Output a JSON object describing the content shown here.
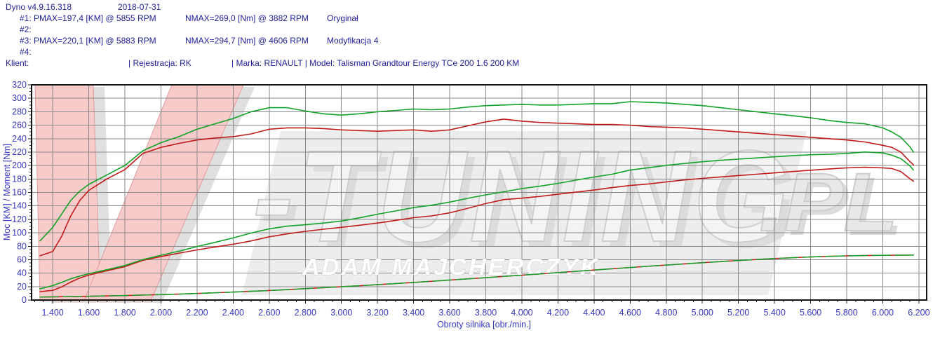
{
  "header": {
    "app": "Dyno v4.9.16.318",
    "date": "2018-07-31",
    "runs": [
      {
        "main": "#1: PMAX=197,4 [KM] @ 5855 RPM",
        "nmax": "NMAX=269,0 [Nm] @ 3882 RPM",
        "label": "Oryginał"
      },
      {
        "main": "#2:",
        "nmax": "",
        "label": ""
      },
      {
        "main": "#3: PMAX=220,1 [KM] @ 5883 RPM",
        "nmax": "NMAX=294,7 [Nm] @ 4606 RPM",
        "label": "Modyfikacja 4"
      },
      {
        "main": "#4:",
        "nmax": "",
        "label": ""
      }
    ],
    "client_line": {
      "klient": "Klient:",
      "rejestracja": "| Rejestracja: RK",
      "marka_model": "| Marka: RENAULT | Model: Talisman Grandtour Energy TCe 200 1.6 200 KM"
    }
  },
  "watermark": {
    "v": "V",
    "tuning": "-TUNING",
    "pl": ".PL",
    "author": "ADAM MAJCHERCZYK"
  },
  "colors": {
    "header_text": "#22229b",
    "tick_text": "#3838c0",
    "grid": "#8a8a8a",
    "border": "#141414",
    "curve_green": "#12a226",
    "curve_red": "#c01a1a",
    "watermark_pink": "#f8cbcb",
    "watermark_pink_edge": "#e09c9c",
    "watermark_gray": "#ededed"
  },
  "chart_data": {
    "type": "line",
    "title": "",
    "xlabel": "Obroty silnika [obr./min.]",
    "ylabel": "Moc [KM] / Moment [Nm]",
    "xlim": [
      1283,
      6243
    ],
    "ylim": [
      0,
      320
    ],
    "grid": true,
    "legend_position": "none",
    "x_ticks": {
      "values": [
        1400,
        1600,
        1800,
        2000,
        2200,
        2400,
        2600,
        2800,
        3000,
        3200,
        3400,
        3600,
        3800,
        4000,
        4200,
        4400,
        4600,
        4800,
        5000,
        5200,
        5400,
        5600,
        5800,
        6000,
        6200
      ],
      "labels": [
        "1.400",
        "1.600",
        "1.800",
        "2.000",
        "2.200",
        "2.400",
        "2.600",
        "2.800",
        "3.000",
        "3.200",
        "3.400",
        "3.600",
        "3.800",
        "4.000",
        "4.200",
        "4.400",
        "4.600",
        "4.800",
        "5.000",
        "5.200",
        "5.400",
        "5.600",
        "5.800",
        "6.000",
        "6.200"
      ],
      "minor_step": 50
    },
    "y_ticks": {
      "values": [
        0,
        20,
        40,
        60,
        80,
        100,
        120,
        140,
        160,
        180,
        200,
        220,
        240,
        260,
        280,
        300,
        320
      ],
      "labels": [
        "0",
        "20",
        "40",
        "60",
        "80",
        "100",
        "120",
        "140",
        "160",
        "180",
        "200",
        "220",
        "240",
        "260",
        "280",
        "300",
        "320"
      ],
      "minor_step": 5
    },
    "x": [
      1330,
      1400,
      1450,
      1500,
      1550,
      1600,
      1700,
      1800,
      1900,
      2000,
      2100,
      2200,
      2300,
      2400,
      2500,
      2600,
      2700,
      2800,
      2900,
      3000,
      3100,
      3200,
      3300,
      3400,
      3500,
      3600,
      3700,
      3800,
      3900,
      4000,
      4100,
      4200,
      4300,
      4400,
      4500,
      4600,
      4700,
      4800,
      4900,
      5000,
      5100,
      5200,
      5300,
      5400,
      5500,
      5600,
      5700,
      5800,
      5900,
      6000,
      6050,
      6100,
      6150,
      6170
    ],
    "series": [
      {
        "name": "strata-oryginal",
        "run": "#1 Oryginał (straty)",
        "unit": "KM",
        "color": "#c01a1a",
        "width": 1.5,
        "values": [
          4.5,
          4.7,
          4.9,
          5.1,
          5.3,
          5.6,
          6.1,
          6.7,
          7.4,
          8.1,
          8.9,
          9.8,
          10.8,
          11.9,
          13.0,
          14.2,
          15.5,
          16.9,
          18.3,
          19.8,
          21.3,
          22.9,
          24.5,
          26.2,
          27.9,
          29.7,
          31.5,
          33.3,
          35.2,
          37.0,
          38.9,
          40.8,
          42.7,
          44.6,
          46.5,
          48.4,
          50.2,
          52.0,
          53.8,
          55.5,
          57.2,
          58.8,
          60.3,
          61.7,
          63.0,
          64.1,
          65.0,
          65.7,
          66.2,
          66.5,
          66.6,
          66.7,
          66.8,
          66.8
        ]
      },
      {
        "name": "strata-modyfikacja",
        "run": "#3 Modyfikacja 4 (straty)",
        "unit": "KM",
        "color": "#12a226",
        "width": 1.5,
        "dash": "26 7",
        "values": [
          4.5,
          4.7,
          4.9,
          5.1,
          5.3,
          5.6,
          6.1,
          6.7,
          7.4,
          8.1,
          8.9,
          9.8,
          10.8,
          11.9,
          13.0,
          14.2,
          15.5,
          16.9,
          18.3,
          19.8,
          21.3,
          22.9,
          24.5,
          26.2,
          27.9,
          29.7,
          31.5,
          33.3,
          35.2,
          37.0,
          38.9,
          40.8,
          42.7,
          44.6,
          46.5,
          48.4,
          50.2,
          52.0,
          53.8,
          55.5,
          57.2,
          58.8,
          60.3,
          61.7,
          63.0,
          64.1,
          65.0,
          65.7,
          66.2,
          66.5,
          66.6,
          66.7,
          66.8,
          66.8
        ]
      },
      {
        "name": "moc-oryginal",
        "run": "#1 Oryginał",
        "unit": "KM",
        "color": "#c01a1a",
        "width": 1.6,
        "values": [
          12.5,
          14.4,
          19.6,
          26.7,
          32.7,
          37.1,
          43.6,
          49.7,
          59.0,
          64.6,
          69.7,
          74.5,
          78.9,
          83.0,
          87.9,
          94.0,
          98.4,
          102.1,
          105.3,
          108.1,
          111.2,
          114.4,
          118.4,
          122.5,
          125.1,
          129.7,
          136.4,
          143.4,
          149.4,
          151.5,
          154.1,
          157.3,
          160.4,
          163.5,
          167.2,
          170.3,
          172.6,
          175.6,
          178.6,
          180.8,
          183.0,
          185.1,
          187.1,
          189.1,
          191.1,
          193.0,
          194.8,
          196.5,
          197.4,
          196.5,
          195.5,
          191.1,
          180.4,
          176.6
        ]
      },
      {
        "name": "moment-oryginal",
        "run": "#1 Oryginał",
        "unit": "Nm",
        "color": "#c01a1a",
        "width": 1.6,
        "values": [
          66,
          72,
          95,
          125,
          148,
          163,
          180,
          194,
          218,
          227,
          233,
          238,
          241,
          243,
          247,
          254,
          256,
          256,
          255,
          253,
          252,
          251,
          252,
          253,
          251,
          253,
          259,
          265,
          269,
          266,
          264,
          263,
          262,
          261,
          261,
          260,
          258,
          257,
          256,
          254,
          252,
          250,
          248,
          246,
          244,
          242,
          240,
          238,
          235,
          230,
          227,
          220,
          206,
          201
        ]
      },
      {
        "name": "moc-modyfikacja",
        "run": "#3 Modyfikacja 4",
        "unit": "KM",
        "color": "#12a226",
        "width": 1.6,
        "values": [
          16.7,
          21.5,
          26.4,
          31.6,
          35.7,
          39.2,
          45.0,
          51.3,
          60.1,
          66.6,
          72.7,
          79.6,
          85.8,
          92.3,
          99.7,
          105.9,
          109.9,
          112.0,
          114.4,
          117.5,
          122.3,
          127.6,
          132.5,
          137.5,
          141.0,
          145.6,
          151.2,
          156.4,
          161.0,
          165.7,
          169.3,
          173.4,
          178.2,
          182.9,
          187.1,
          193.2,
          196.7,
          200.2,
          203.0,
          205.7,
          207.7,
          209.5,
          211.3,
          213.0,
          214.6,
          216.1,
          216.7,
          218.0,
          220.1,
          218.7,
          215.3,
          210.2,
          199.6,
          193.3
        ]
      },
      {
        "name": "moment-modyfikacja",
        "run": "#3 Modyfikacja 4",
        "unit": "Nm",
        "color": "#12a226",
        "width": 1.6,
        "values": [
          88,
          108,
          128,
          148,
          162,
          172,
          186,
          200,
          222,
          234,
          243,
          254,
          262,
          270,
          280,
          286,
          286,
          281,
          277,
          275,
          277,
          280,
          282,
          284,
          283,
          284,
          287,
          289,
          290,
          291,
          290,
          290,
          291,
          292,
          292,
          295,
          294,
          293,
          291,
          289,
          286,
          283,
          280,
          277,
          274,
          271,
          267,
          264,
          262,
          256,
          250,
          242,
          228,
          220
        ]
      }
    ]
  }
}
